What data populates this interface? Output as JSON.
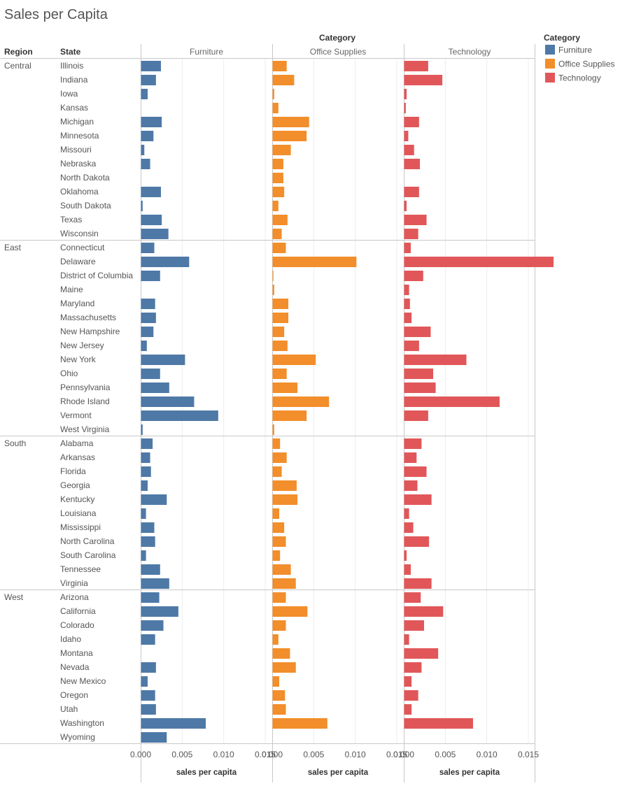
{
  "title": "Sales per Capita",
  "colors": {
    "Furniture": "#4e79a7",
    "Office Supplies": "#f28e2b",
    "Technology": "#e15759",
    "grid": "#ececec",
    "divider": "#c8c8c8",
    "text": "#555555",
    "header_text": "#333333"
  },
  "headers": {
    "category_title": "Category",
    "region": "Region",
    "state": "State",
    "xaxis_label": "sales per capita"
  },
  "legend": {
    "title": "Category",
    "items": [
      "Furniture",
      "Office Supplies",
      "Technology"
    ]
  },
  "chart_data": {
    "type": "bar",
    "orientation": "horizontal",
    "title": "Sales per Capita",
    "xlabel": "sales per capita",
    "xlim": [
      0,
      0.015
    ],
    "xticks": [
      "0.000",
      "0.005",
      "0.010",
      "0.015"
    ],
    "grid": true,
    "legend_position": "right",
    "panels": [
      "Furniture",
      "Office Supplies",
      "Technology"
    ],
    "regions": [
      {
        "name": "Central",
        "states": [
          {
            "state": "Illinois",
            "Furniture": 0.0024,
            "Office Supplies": 0.0017,
            "Technology": 0.0029
          },
          {
            "state": "Indiana",
            "Furniture": 0.0018,
            "Office Supplies": 0.0026,
            "Technology": 0.0046
          },
          {
            "state": "Iowa",
            "Furniture": 0.0008,
            "Office Supplies": 0.0002,
            "Technology": 0.0003
          },
          {
            "state": "Kansas",
            "Furniture": 0.0,
            "Office Supplies": 0.0007,
            "Technology": 0.0002
          },
          {
            "state": "Michigan",
            "Furniture": 0.0025,
            "Office Supplies": 0.0044,
            "Technology": 0.0018
          },
          {
            "state": "Minnesota",
            "Furniture": 0.0015,
            "Office Supplies": 0.0041,
            "Technology": 0.0005
          },
          {
            "state": "Missouri",
            "Furniture": 0.0004,
            "Office Supplies": 0.0022,
            "Technology": 0.0012
          },
          {
            "state": "Nebraska",
            "Furniture": 0.0011,
            "Office Supplies": 0.0013,
            "Technology": 0.0019
          },
          {
            "state": "North Dakota",
            "Furniture": 0.0,
            "Office Supplies": 0.0013,
            "Technology": 0.0
          },
          {
            "state": "Oklahoma",
            "Furniture": 0.0024,
            "Office Supplies": 0.0014,
            "Technology": 0.0018
          },
          {
            "state": "South Dakota",
            "Furniture": 0.0002,
            "Office Supplies": 0.0007,
            "Technology": 0.0003
          },
          {
            "state": "Texas",
            "Furniture": 0.0025,
            "Office Supplies": 0.0018,
            "Technology": 0.0027
          },
          {
            "state": "Wisconsin",
            "Furniture": 0.0033,
            "Office Supplies": 0.0011,
            "Technology": 0.0017
          }
        ]
      },
      {
        "name": "East",
        "states": [
          {
            "state": "Connecticut",
            "Furniture": 0.0016,
            "Office Supplies": 0.0016,
            "Technology": 0.0008
          },
          {
            "state": "Delaware",
            "Furniture": 0.0058,
            "Office Supplies": 0.0101,
            "Technology": 0.0182
          },
          {
            "state": "District of Columbia",
            "Furniture": 0.0023,
            "Office Supplies": 0.0001,
            "Technology": 0.0023
          },
          {
            "state": "Maine",
            "Furniture": 0.0,
            "Office Supplies": 0.0002,
            "Technology": 0.0006
          },
          {
            "state": "Maryland",
            "Furniture": 0.0017,
            "Office Supplies": 0.0019,
            "Technology": 0.0007
          },
          {
            "state": "Massachusetts",
            "Furniture": 0.0018,
            "Office Supplies": 0.0019,
            "Technology": 0.0009
          },
          {
            "state": "New Hampshire",
            "Furniture": 0.0015,
            "Office Supplies": 0.0014,
            "Technology": 0.0032
          },
          {
            "state": "New Jersey",
            "Furniture": 0.0007,
            "Office Supplies": 0.0018,
            "Technology": 0.0018
          },
          {
            "state": "New York",
            "Furniture": 0.0053,
            "Office Supplies": 0.0052,
            "Technology": 0.0075
          },
          {
            "state": "Ohio",
            "Furniture": 0.0023,
            "Office Supplies": 0.0017,
            "Technology": 0.0035
          },
          {
            "state": "Pennsylvania",
            "Furniture": 0.0034,
            "Office Supplies": 0.003,
            "Technology": 0.0038
          },
          {
            "state": "Rhode Island",
            "Furniture": 0.0064,
            "Office Supplies": 0.0068,
            "Technology": 0.0115
          },
          {
            "state": "Vermont",
            "Furniture": 0.0093,
            "Office Supplies": 0.0041,
            "Technology": 0.0029
          },
          {
            "state": "West Virginia",
            "Furniture": 0.0002,
            "Office Supplies": 0.0002,
            "Technology": 0.0
          }
        ]
      },
      {
        "name": "South",
        "states": [
          {
            "state": "Alabama",
            "Furniture": 0.0014,
            "Office Supplies": 0.0009,
            "Technology": 0.0021
          },
          {
            "state": "Arkansas",
            "Furniture": 0.0011,
            "Office Supplies": 0.0017,
            "Technology": 0.0015
          },
          {
            "state": "Florida",
            "Furniture": 0.0012,
            "Office Supplies": 0.0011,
            "Technology": 0.0027
          },
          {
            "state": "Georgia",
            "Furniture": 0.0008,
            "Office Supplies": 0.0029,
            "Technology": 0.0016
          },
          {
            "state": "Kentucky",
            "Furniture": 0.0031,
            "Office Supplies": 0.003,
            "Technology": 0.0033
          },
          {
            "state": "Louisiana",
            "Furniture": 0.0006,
            "Office Supplies": 0.0008,
            "Technology": 0.0006
          },
          {
            "state": "Mississippi",
            "Furniture": 0.0016,
            "Office Supplies": 0.0014,
            "Technology": 0.0011
          },
          {
            "state": "North Carolina",
            "Furniture": 0.0017,
            "Office Supplies": 0.0016,
            "Technology": 0.003
          },
          {
            "state": "South Carolina",
            "Furniture": 0.0006,
            "Office Supplies": 0.0009,
            "Technology": 0.0003
          },
          {
            "state": "Tennessee",
            "Furniture": 0.0023,
            "Office Supplies": 0.0022,
            "Technology": 0.0008
          },
          {
            "state": "Virginia",
            "Furniture": 0.0034,
            "Office Supplies": 0.0028,
            "Technology": 0.0033
          }
        ]
      },
      {
        "name": "West",
        "states": [
          {
            "state": "Arizona",
            "Furniture": 0.0022,
            "Office Supplies": 0.0016,
            "Technology": 0.002
          },
          {
            "state": "California",
            "Furniture": 0.0045,
            "Office Supplies": 0.0042,
            "Technology": 0.0047
          },
          {
            "state": "Colorado",
            "Furniture": 0.0027,
            "Office Supplies": 0.0016,
            "Technology": 0.0024
          },
          {
            "state": "Idaho",
            "Furniture": 0.0017,
            "Office Supplies": 0.0007,
            "Technology": 0.0006
          },
          {
            "state": "Montana",
            "Furniture": 0.0,
            "Office Supplies": 0.0021,
            "Technology": 0.0041
          },
          {
            "state": "Nevada",
            "Furniture": 0.0018,
            "Office Supplies": 0.0028,
            "Technology": 0.0021
          },
          {
            "state": "New Mexico",
            "Furniture": 0.0008,
            "Office Supplies": 0.0008,
            "Technology": 0.0009
          },
          {
            "state": "Oregon",
            "Furniture": 0.0017,
            "Office Supplies": 0.0015,
            "Technology": 0.0017
          },
          {
            "state": "Utah",
            "Furniture": 0.0018,
            "Office Supplies": 0.0016,
            "Technology": 0.0009
          },
          {
            "state": "Washington",
            "Furniture": 0.0078,
            "Office Supplies": 0.0066,
            "Technology": 0.0083
          },
          {
            "state": "Wyoming",
            "Furniture": 0.0031,
            "Office Supplies": 0.0,
            "Technology": 0.0
          }
        ]
      }
    ]
  }
}
